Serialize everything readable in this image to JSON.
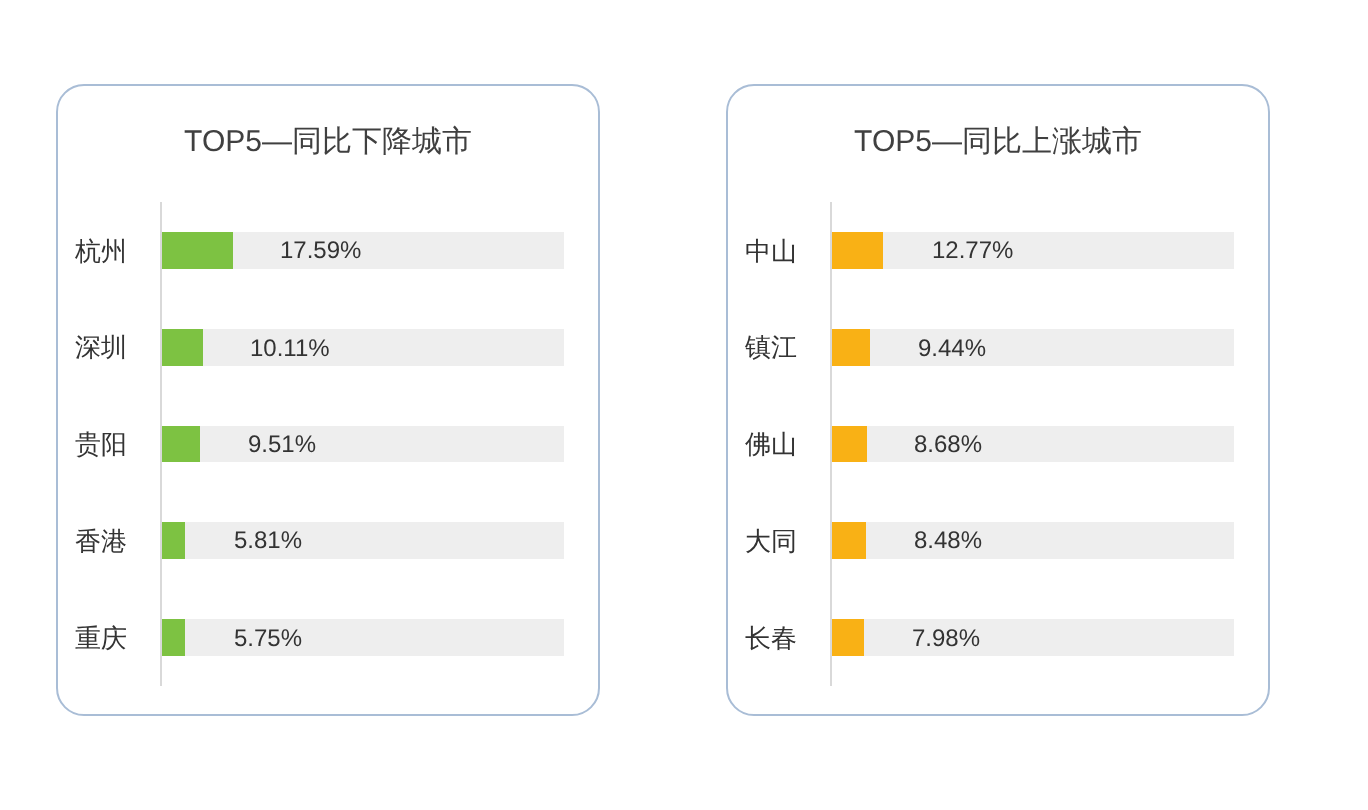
{
  "chart_data": [
    {
      "type": "bar",
      "orientation": "horizontal",
      "stacked": true,
      "title": "TOP5—同比下降城市",
      "categories": [
        "杭州",
        "深圳",
        "贵阳",
        "香港",
        "重庆"
      ],
      "series": [
        {
          "color": "#7dc242",
          "values": [
            17.59,
            10.11,
            9.51,
            5.81,
            5.75
          ],
          "value_labels": [
            "17.59%",
            "10.11%",
            "9.51%",
            "5.81%",
            "5.75%"
          ]
        },
        {
          "color": "#eeeeee",
          "values": [
            82.41,
            89.89,
            90.49,
            94.19,
            94.25
          ]
        }
      ],
      "xlim": [
        0,
        100
      ],
      "tick_labels": "y"
    },
    {
      "type": "bar",
      "orientation": "horizontal",
      "stacked": true,
      "title": "TOP5—同比上涨城市",
      "categories": [
        "中山",
        "镇江",
        "佛山",
        "大同",
        "长春"
      ],
      "series": [
        {
          "color": "#f9b115",
          "values": [
            12.77,
            9.44,
            8.68,
            8.48,
            7.98
          ],
          "value_labels": [
            "12.77%",
            "9.44%",
            "8.68%",
            "8.48%",
            "7.98%"
          ]
        },
        {
          "color": "#eeeeee",
          "values": [
            87.23,
            90.56,
            91.32,
            91.52,
            92.02
          ]
        }
      ],
      "xlim": [
        0,
        100
      ],
      "tick_labels": "y"
    }
  ]
}
